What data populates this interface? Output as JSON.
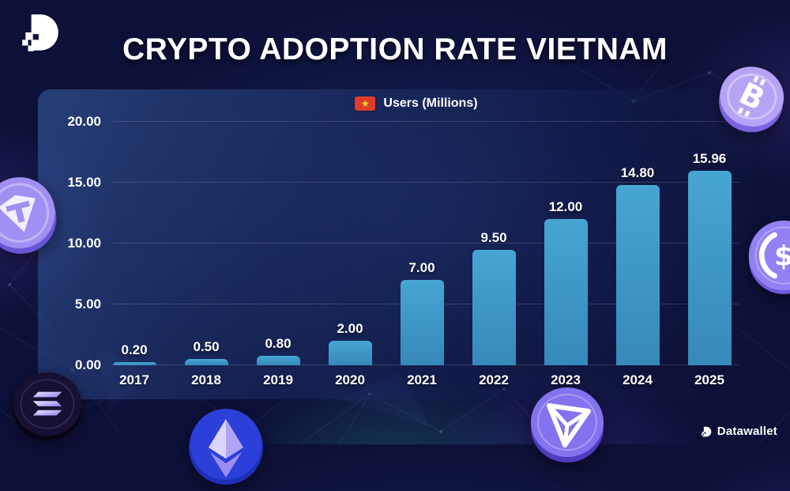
{
  "header": {
    "title": "CRYPTO ADOPTION RATE VIETNAM"
  },
  "branding": {
    "logo_icon": "datawallet-logo-icon",
    "footer_text": "Datawallet"
  },
  "legend": {
    "flag_icon": "vietnam-flag-icon",
    "flag_star": "★",
    "label": "Users (Millions)"
  },
  "chart_data": {
    "type": "bar",
    "title": "Crypto Adoption Rate Vietnam",
    "legend_label": "Users (Millions)",
    "legend_position": "top-center",
    "categories": [
      "2017",
      "2018",
      "2019",
      "2020",
      "2021",
      "2022",
      "2023",
      "2024",
      "2025"
    ],
    "values": [
      0.2,
      0.5,
      0.8,
      2.0,
      7.0,
      9.5,
      12.0,
      14.8,
      15.96
    ],
    "value_labels": [
      "0.20",
      "0.50",
      "0.80",
      "2.00",
      "7.00",
      "9.50",
      "12.00",
      "14.80",
      "15.96"
    ],
    "xlabel": "",
    "ylabel": "",
    "ylim": [
      0,
      20
    ],
    "yticks": [
      0,
      5,
      10,
      15,
      20
    ],
    "ytick_labels": [
      "0.00",
      "5.00",
      "10.00",
      "15.00",
      "20.00"
    ],
    "grid": true,
    "bar_color": "#3f9ac9",
    "background_color": "#0d1038",
    "panel_color": "#1e3a74",
    "text_color": "#ffffff"
  },
  "decor": {
    "coins": [
      "tether-coin-icon",
      "bitcoin-coin-icon",
      "usdc-coin-icon",
      "solana-coin-icon",
      "ethereum-coin-icon",
      "tron-coin-icon"
    ],
    "background_motif": "network-plexus-lines",
    "accent_purple": "#9c8bf3",
    "accent_teal": "#2dc8be"
  }
}
